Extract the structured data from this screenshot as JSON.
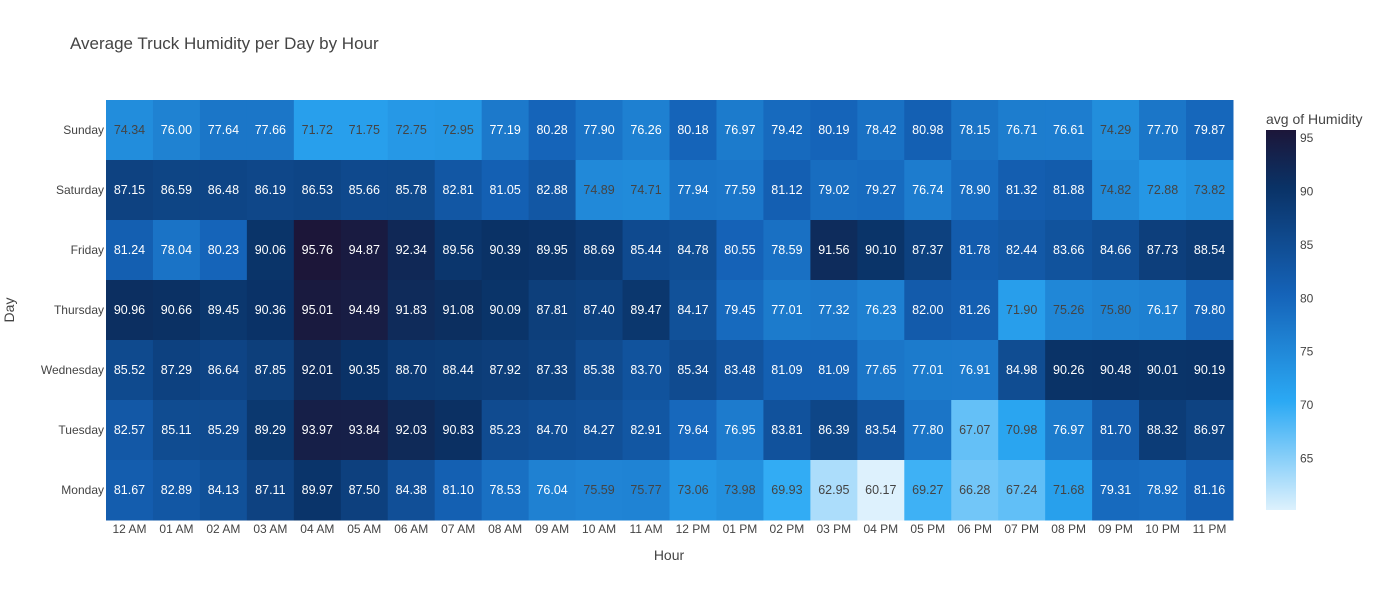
{
  "chart_data": {
    "type": "heatmap",
    "title": "Average Truck Humidity per Day by Hour",
    "xlabel": "Hour",
    "ylabel": "Day",
    "x": [
      "12 AM",
      "01 AM",
      "02 AM",
      "03 AM",
      "04 AM",
      "05 AM",
      "06 AM",
      "07 AM",
      "08 AM",
      "09 AM",
      "10 AM",
      "11 AM",
      "12 PM",
      "01 PM",
      "02 PM",
      "03 PM",
      "04 PM",
      "05 PM",
      "06 PM",
      "07 PM",
      "08 PM",
      "09 PM",
      "10 PM",
      "11 PM"
    ],
    "y": [
      "Sunday",
      "Saturday",
      "Friday",
      "Thursday",
      "Wednesday",
      "Tuesday",
      "Monday"
    ],
    "values": [
      [
        "74.34",
        "76.00",
        "77.64",
        "77.66",
        "71.72",
        "71.75",
        "72.75",
        "72.95",
        "77.19",
        "80.28",
        "77.90",
        "76.26",
        "80.18",
        "76.97",
        "79.42",
        "80.19",
        "78.42",
        "80.98",
        "78.15",
        "76.71",
        "76.61",
        "74.29",
        "77.70",
        "79.87"
      ],
      [
        "87.15",
        "86.59",
        "86.48",
        "86.19",
        "86.53",
        "85.66",
        "85.78",
        "82.81",
        "81.05",
        "82.88",
        "74.89",
        "74.71",
        "77.94",
        "77.59",
        "81.12",
        "79.02",
        "79.27",
        "76.74",
        "78.90",
        "81.32",
        "81.88",
        "74.82",
        "72.88",
        "73.82"
      ],
      [
        "81.24",
        "78.04",
        "80.23",
        "90.06",
        "95.76",
        "94.87",
        "92.34",
        "89.56",
        "90.39",
        "89.95",
        "88.69",
        "85.44",
        "84.78",
        "80.55",
        "78.59",
        "91.56",
        "90.10",
        "87.37",
        "81.78",
        "82.44",
        "83.66",
        "84.66",
        "87.73",
        "88.54"
      ],
      [
        "90.96",
        "90.66",
        "89.45",
        "90.36",
        "95.01",
        "94.49",
        "91.83",
        "91.08",
        "90.09",
        "87.81",
        "87.40",
        "89.47",
        "84.17",
        "79.45",
        "77.01",
        "77.32",
        "76.23",
        "82.00",
        "81.26",
        "71.90",
        "75.26",
        "75.80",
        "76.17",
        "79.80"
      ],
      [
        "85.52",
        "87.29",
        "86.64",
        "87.85",
        "92.01",
        "90.35",
        "88.70",
        "88.44",
        "87.92",
        "87.33",
        "85.38",
        "83.70",
        "85.34",
        "83.48",
        "81.09",
        "81.09",
        "77.65",
        "77.01",
        "76.91",
        "84.98",
        "90.26",
        "90.48",
        "90.01",
        "90.19"
      ],
      [
        "82.57",
        "85.11",
        "85.29",
        "89.29",
        "93.97",
        "93.84",
        "92.03",
        "90.83",
        "85.23",
        "84.70",
        "84.27",
        "82.91",
        "79.64",
        "76.95",
        "83.81",
        "86.39",
        "83.54",
        "77.80",
        "67.07",
        "70.98",
        "76.97",
        "81.70",
        "88.32",
        "86.97"
      ],
      [
        "81.67",
        "82.89",
        "84.13",
        "87.11",
        "89.97",
        "87.50",
        "84.38",
        "81.10",
        "78.53",
        "76.04",
        "75.59",
        "75.77",
        "73.06",
        "73.98",
        "69.93",
        "62.95",
        "60.17",
        "69.27",
        "66.28",
        "67.24",
        "71.68",
        "79.31",
        "78.92",
        "81.16"
      ]
    ],
    "colorbar": {
      "title": "avg of Humidity",
      "ticks": [
        "95",
        "90",
        "85",
        "80",
        "75",
        "70",
        "65"
      ],
      "range": [
        60.17,
        95.76
      ]
    },
    "colorscale": [
      "#ddf1fd",
      "#2ba9f4",
      "#1563b8",
      "#0a3266",
      "#1c1639"
    ]
  }
}
